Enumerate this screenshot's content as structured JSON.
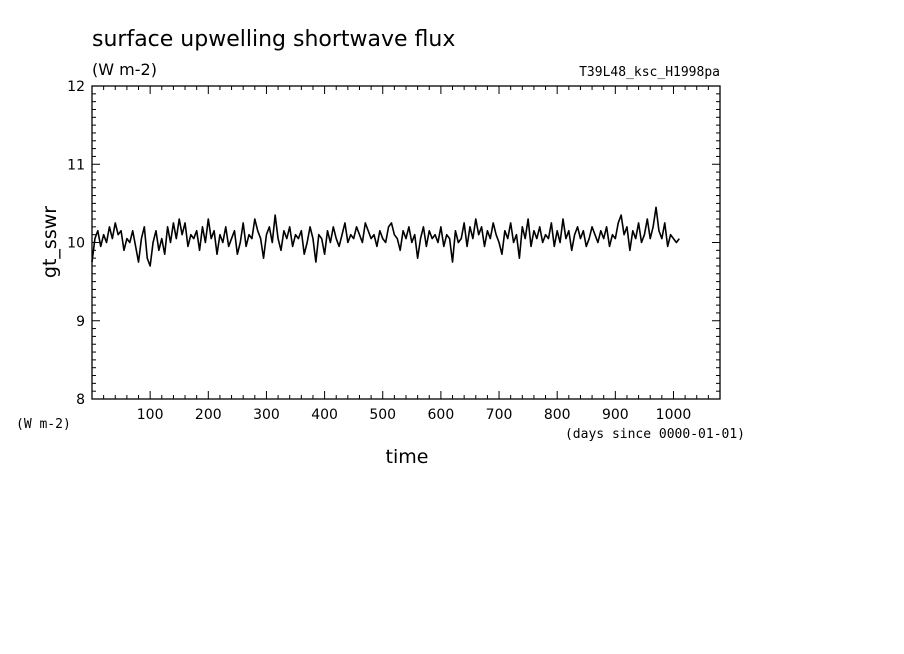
{
  "chart_data": {
    "type": "line",
    "title": "surface upwelling shortwave flux",
    "units": "(W m-2)",
    "experiment": "T39L48_ksc_H1998pa",
    "xlabel": "time",
    "xunits": "(days since 0000-01-01)",
    "ylabel": "gt_sswr",
    "yunits": "(W m-2)",
    "xlim": [
      0,
      1080
    ],
    "ylim": [
      8,
      12
    ],
    "xticks": [
      100,
      200,
      300,
      400,
      500,
      600,
      700,
      800,
      900,
      1000
    ],
    "yticks": [
      8,
      9,
      10,
      11,
      12
    ],
    "grid": false,
    "series": [
      {
        "color": "#000000",
        "x_start": 0,
        "x_step": 5,
        "values": [
          9.75,
          10.05,
          10.15,
          9.95,
          10.1,
          10.0,
          10.2,
          10.05,
          10.25,
          10.1,
          10.15,
          9.9,
          10.05,
          10.0,
          10.15,
          9.95,
          9.75,
          10.05,
          10.2,
          9.8,
          9.7,
          10.0,
          10.15,
          9.9,
          10.05,
          9.85,
          10.2,
          10.0,
          10.25,
          10.05,
          10.3,
          10.1,
          10.25,
          9.95,
          10.1,
          10.05,
          10.15,
          9.9,
          10.2,
          10.0,
          10.3,
          10.05,
          10.15,
          9.85,
          10.1,
          10.0,
          10.2,
          9.95,
          10.05,
          10.15,
          9.85,
          10.0,
          10.25,
          9.95,
          10.1,
          10.05,
          10.3,
          10.15,
          10.05,
          9.8,
          10.1,
          10.2,
          10.0,
          10.35,
          10.05,
          9.9,
          10.15,
          10.05,
          10.2,
          9.95,
          10.1,
          10.05,
          10.15,
          9.85,
          10.0,
          10.2,
          10.05,
          9.75,
          10.1,
          10.05,
          9.85,
          10.15,
          10.0,
          10.2,
          10.05,
          9.95,
          10.1,
          10.25,
          10.0,
          10.1,
          10.05,
          10.2,
          10.1,
          10.0,
          10.25,
          10.15,
          10.05,
          10.1,
          9.95,
          10.15,
          10.05,
          10.0,
          10.2,
          10.25,
          10.1,
          10.05,
          9.9,
          10.15,
          10.05,
          10.2,
          10.0,
          10.1,
          9.8,
          10.05,
          10.2,
          9.95,
          10.15,
          10.05,
          10.1,
          10.0,
          10.2,
          9.95,
          10.1,
          10.05,
          9.75,
          10.15,
          10.0,
          10.05,
          10.25,
          9.95,
          10.2,
          10.05,
          10.3,
          10.1,
          10.2,
          9.95,
          10.15,
          10.05,
          10.25,
          10.1,
          10.0,
          9.85,
          10.15,
          10.05,
          10.25,
          10.0,
          10.1,
          9.8,
          10.2,
          10.05,
          10.3,
          9.95,
          10.15,
          10.05,
          10.2,
          10.0,
          10.1,
          10.05,
          10.25,
          9.95,
          10.15,
          10.0,
          10.3,
          10.05,
          10.15,
          9.9,
          10.1,
          10.2,
          10.05,
          10.15,
          9.95,
          10.05,
          10.2,
          10.1,
          10.0,
          10.15,
          10.05,
          10.2,
          9.95,
          10.1,
          10.05,
          10.25,
          10.35,
          10.1,
          10.2,
          9.9,
          10.15,
          10.05,
          10.25,
          10.0,
          10.1,
          10.3,
          10.05,
          10.2,
          10.45,
          10.15,
          10.05,
          10.25,
          9.95,
          10.1,
          10.05,
          10.0,
          10.05
        ]
      }
    ]
  }
}
